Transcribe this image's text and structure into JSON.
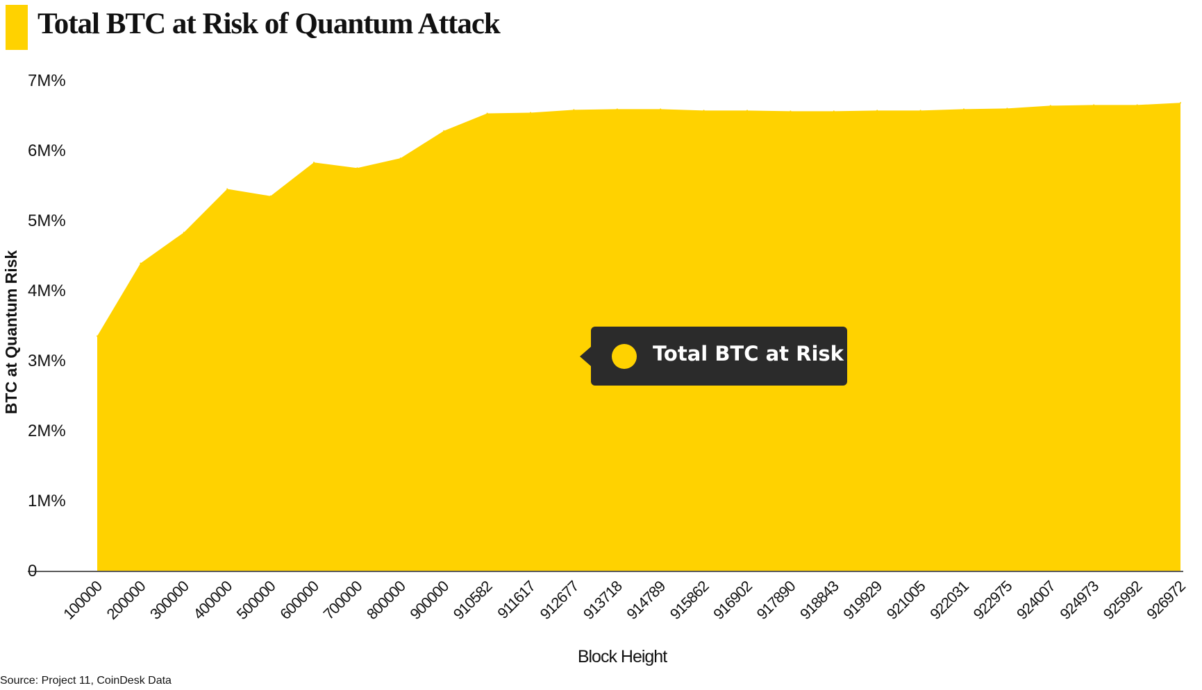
{
  "title": "Total BTC at Risk of Quantum Attack",
  "source": "Source: Project 11, CoinDesk Data",
  "colors": {
    "accent": "#FFD200",
    "tooltip_bg": "#2B2B2B",
    "text": "#111111"
  },
  "chart_data": {
    "type": "area",
    "title": "Total BTC at Risk of Quantum Attack",
    "xlabel": "Block Height",
    "ylabel": "BTC at Quantum Risk",
    "ylim": [
      0,
      7000000
    ],
    "yticks": [
      {
        "value": 0,
        "label": "0"
      },
      {
        "value": 1000000,
        "label": "1M%"
      },
      {
        "value": 2000000,
        "label": "2M%"
      },
      {
        "value": 3000000,
        "label": "3M%"
      },
      {
        "value": 4000000,
        "label": "4M%"
      },
      {
        "value": 5000000,
        "label": "5M%"
      },
      {
        "value": 6000000,
        "label": "6M%"
      },
      {
        "value": 7000000,
        "label": "7M%"
      }
    ],
    "categories": [
      "100000",
      "200000",
      "300000",
      "400000",
      "500000",
      "600000",
      "700000",
      "800000",
      "900000",
      "910582",
      "911617",
      "912677",
      "913718",
      "914789",
      "915862",
      "916902",
      "917890",
      "918843",
      "919929",
      "921005",
      "922031",
      "922975",
      "924007",
      "924973",
      "925992",
      "926972"
    ],
    "series": [
      {
        "name": "Total BTC at Risk",
        "values": [
          3350000,
          4390000,
          4830000,
          5450000,
          5350000,
          5830000,
          5750000,
          5890000,
          6280000,
          6530000,
          6540000,
          6580000,
          6590000,
          6590000,
          6570000,
          6570000,
          6560000,
          6560000,
          6570000,
          6570000,
          6590000,
          6600000,
          6640000,
          6650000,
          6650000,
          6680000
        ]
      }
    ],
    "grid": false,
    "legend": "center"
  }
}
